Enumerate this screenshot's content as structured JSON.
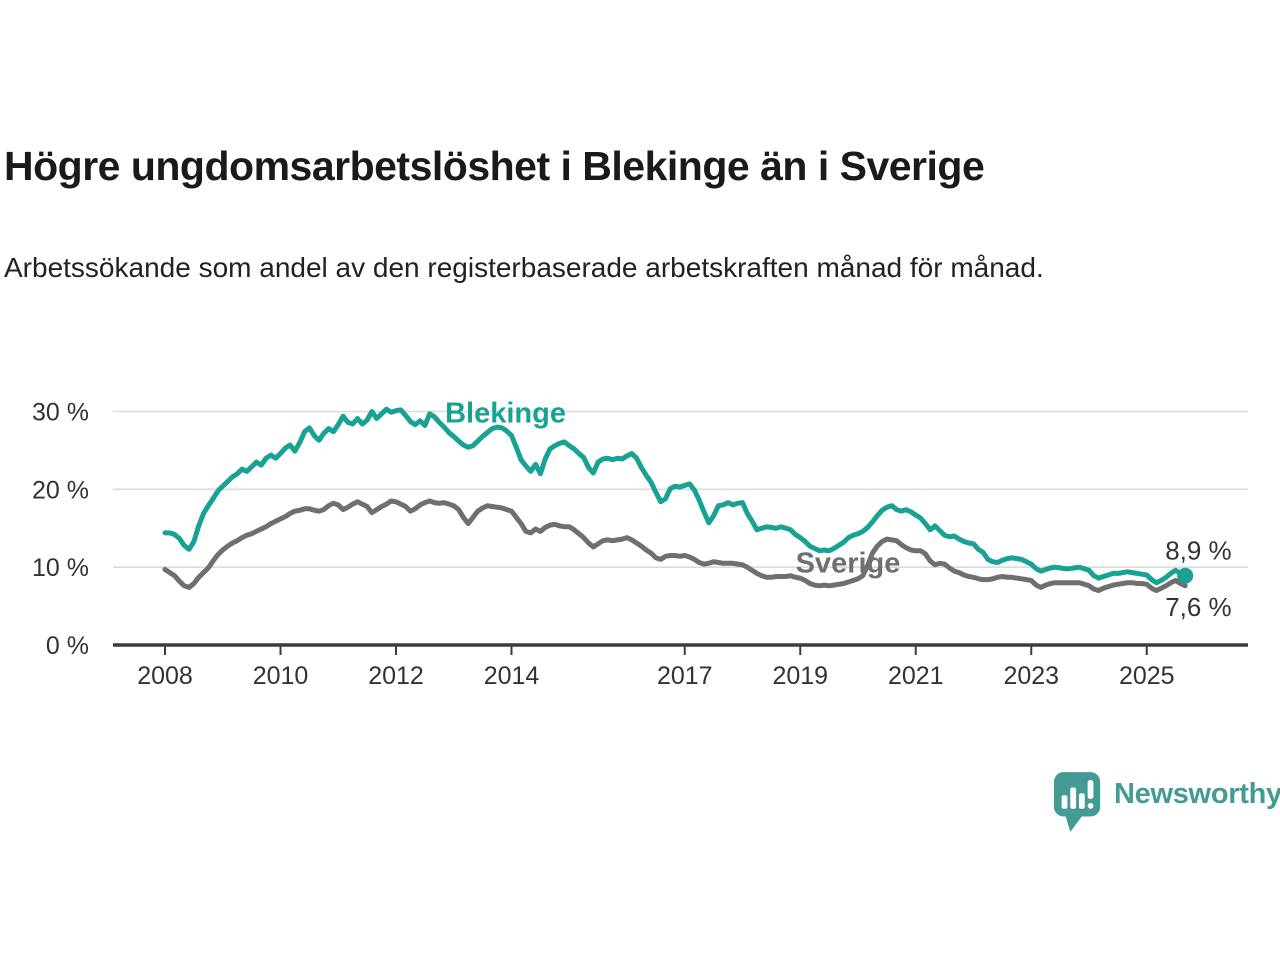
{
  "header": {
    "title": "Högre ungdomsarbetslöshet i Blekinge än i Sverige",
    "subtitle": "Arbetssökande som andel av den registerbaserade arbetskraften månad för månad."
  },
  "footer": {
    "brand": "Newsworthy"
  },
  "colors": {
    "blekinge_line": "#17A294",
    "sverige_line": "#6F6F6F",
    "grid_line": "#DBDBDB",
    "axis_line": "#3C3C3C",
    "title_text": "#1A1A1A",
    "label_text": "#333333",
    "brand_teal": "#449B95"
  },
  "chart_data": {
    "type": "line",
    "title": "Högre ungdomsarbetslöshet i Blekinge än i Sverige",
    "subtitle": "Arbetssökande som andel av den registerbaserade arbetskraften månad för månad.",
    "x_unit": "year",
    "point_interval": "monthly",
    "x_start": 2008.0,
    "x_step_years": 0.0833333,
    "x_end": 2025.67,
    "ylim": [
      0,
      32
    ],
    "grid": "horizontal",
    "legend": "inline-labels",
    "yticks": [
      {
        "value": 0,
        "label": "0 %"
      },
      {
        "value": 10,
        "label": "10 %"
      },
      {
        "value": 20,
        "label": "20 %"
      },
      {
        "value": 30,
        "label": "30 %"
      }
    ],
    "xticks": [
      {
        "value": 2008,
        "label": "2008"
      },
      {
        "value": 2010,
        "label": "2010"
      },
      {
        "value": 2012,
        "label": "2012"
      },
      {
        "value": 2014,
        "label": "2014"
      },
      {
        "value": 2017,
        "label": "2017"
      },
      {
        "value": 2019,
        "label": "2019"
      },
      {
        "value": 2021,
        "label": "2021"
      },
      {
        "value": 2023,
        "label": "2023"
      },
      {
        "value": 2025,
        "label": "2025"
      }
    ],
    "series": [
      {
        "name": "Blekinge",
        "color": "#17A294",
        "label_x": 2012.85,
        "label_y": 28.6,
        "end_dot": true,
        "end_label": "8,9 %",
        "end_label_side": "above",
        "last_value": 8.9,
        "values": [
          14.4,
          14.4,
          14.2,
          13.7,
          12.8,
          12.3,
          13.3,
          15.3,
          16.9,
          17.9,
          18.8,
          19.8,
          20.4,
          21.0,
          21.6,
          22.0,
          22.6,
          22.3,
          22.9,
          23.5,
          23.1,
          24.0,
          24.4,
          24.0,
          24.6,
          25.3,
          25.7,
          24.9,
          26.0,
          27.4,
          27.9,
          26.9,
          26.3,
          27.2,
          27.8,
          27.4,
          28.3,
          29.4,
          28.6,
          28.4,
          29.1,
          28.4,
          28.9,
          30.0,
          29.1,
          29.7,
          30.3,
          29.9,
          30.1,
          30.2,
          29.5,
          28.7,
          28.3,
          28.8,
          28.2,
          29.7,
          29.3,
          28.6,
          28.0,
          27.3,
          26.8,
          26.2,
          25.7,
          25.4,
          25.6,
          26.2,
          26.8,
          27.3,
          27.8,
          28.0,
          27.9,
          27.5,
          26.9,
          25.4,
          23.8,
          23.0,
          22.3,
          23.2,
          22.0,
          23.9,
          25.2,
          25.6,
          25.9,
          26.1,
          25.6,
          25.2,
          24.6,
          24.1,
          22.8,
          22.1,
          23.5,
          23.9,
          24.0,
          23.8,
          24.0,
          23.9,
          24.3,
          24.6,
          24.0,
          22.8,
          21.8,
          20.9,
          19.6,
          18.4,
          18.8,
          20.1,
          20.4,
          20.3,
          20.5,
          20.7,
          19.9,
          18.6,
          17.1,
          15.7,
          16.6,
          17.9,
          18.0,
          18.3,
          18.0,
          18.2,
          18.3,
          16.9,
          15.9,
          14.8,
          15.0,
          15.2,
          15.1,
          15.0,
          15.2,
          15.0,
          14.8,
          14.2,
          13.8,
          13.3,
          12.7,
          12.4,
          12.1,
          12.2,
          12.1,
          12.4,
          12.8,
          13.2,
          13.8,
          14.1,
          14.3,
          14.6,
          15.1,
          15.8,
          16.6,
          17.3,
          17.7,
          17.9,
          17.4,
          17.2,
          17.4,
          17.1,
          16.7,
          16.3,
          15.6,
          14.8,
          15.3,
          14.7,
          14.1,
          13.9,
          14.0,
          13.6,
          13.3,
          13.1,
          13.0,
          12.3,
          11.9,
          11.0,
          10.7,
          10.6,
          10.9,
          11.1,
          11.2,
          11.1,
          11.0,
          10.7,
          10.4,
          9.8,
          9.5,
          9.7,
          9.9,
          10.0,
          9.9,
          9.8,
          9.8,
          9.9,
          10.0,
          9.8,
          9.6,
          8.9,
          8.6,
          8.8,
          9.0,
          9.2,
          9.2,
          9.3,
          9.4,
          9.3,
          9.2,
          9.1,
          9.0,
          8.4,
          8.0,
          8.3,
          8.7,
          9.2,
          9.6,
          9.2,
          8.9
        ]
      },
      {
        "name": "Sverige",
        "color": "#6F6F6F",
        "label_x": 2018.92,
        "label_y": 9.3,
        "end_dot": false,
        "end_label": "7,6 %",
        "end_label_side": "below",
        "last_value": 7.6,
        "values": [
          9.7,
          9.3,
          8.9,
          8.2,
          7.6,
          7.4,
          7.9,
          8.7,
          9.3,
          9.9,
          10.8,
          11.6,
          12.2,
          12.7,
          13.1,
          13.4,
          13.8,
          14.1,
          14.3,
          14.6,
          14.9,
          15.2,
          15.6,
          15.9,
          16.2,
          16.5,
          16.9,
          17.2,
          17.3,
          17.5,
          17.5,
          17.3,
          17.2,
          17.4,
          17.9,
          18.2,
          18.0,
          17.4,
          17.7,
          18.1,
          18.4,
          18.1,
          17.8,
          17.0,
          17.4,
          17.8,
          18.1,
          18.5,
          18.4,
          18.1,
          17.8,
          17.2,
          17.5,
          18.0,
          18.3,
          18.5,
          18.3,
          18.2,
          18.3,
          18.1,
          17.9,
          17.4,
          16.4,
          15.6,
          16.4,
          17.2,
          17.6,
          17.9,
          17.8,
          17.7,
          17.6,
          17.4,
          17.2,
          16.4,
          15.6,
          14.6,
          14.4,
          14.9,
          14.6,
          15.1,
          15.4,
          15.5,
          15.3,
          15.2,
          15.2,
          14.8,
          14.3,
          13.8,
          13.1,
          12.6,
          13.0,
          13.4,
          13.5,
          13.4,
          13.5,
          13.6,
          13.8,
          13.5,
          13.1,
          12.7,
          12.2,
          11.8,
          11.2,
          11.0,
          11.4,
          11.5,
          11.5,
          11.4,
          11.5,
          11.3,
          11.0,
          10.6,
          10.4,
          10.5,
          10.7,
          10.6,
          10.5,
          10.5,
          10.5,
          10.4,
          10.3,
          10.0,
          9.6,
          9.2,
          8.9,
          8.7,
          8.7,
          8.8,
          8.8,
          8.8,
          8.9,
          8.7,
          8.6,
          8.3,
          7.9,
          7.7,
          7.6,
          7.7,
          7.6,
          7.7,
          7.8,
          7.9,
          8.1,
          8.3,
          8.5,
          8.9,
          10.2,
          11.8,
          12.7,
          13.3,
          13.6,
          13.5,
          13.4,
          12.9,
          12.5,
          12.2,
          12.1,
          12.1,
          11.7,
          10.8,
          10.3,
          10.5,
          10.4,
          9.9,
          9.5,
          9.3,
          9.0,
          8.8,
          8.7,
          8.5,
          8.4,
          8.4,
          8.5,
          8.7,
          8.8,
          8.7,
          8.7,
          8.6,
          8.5,
          8.4,
          8.3,
          7.7,
          7.4,
          7.7,
          7.9,
          8.0,
          8.0,
          8.0,
          8.0,
          8.0,
          8.0,
          7.8,
          7.6,
          7.2,
          7.0,
          7.3,
          7.5,
          7.7,
          7.8,
          7.9,
          8.0,
          8.0,
          7.9,
          7.9,
          7.8,
          7.3,
          7.0,
          7.3,
          7.6,
          8.0,
          8.3,
          7.9,
          7.6
        ]
      }
    ]
  }
}
